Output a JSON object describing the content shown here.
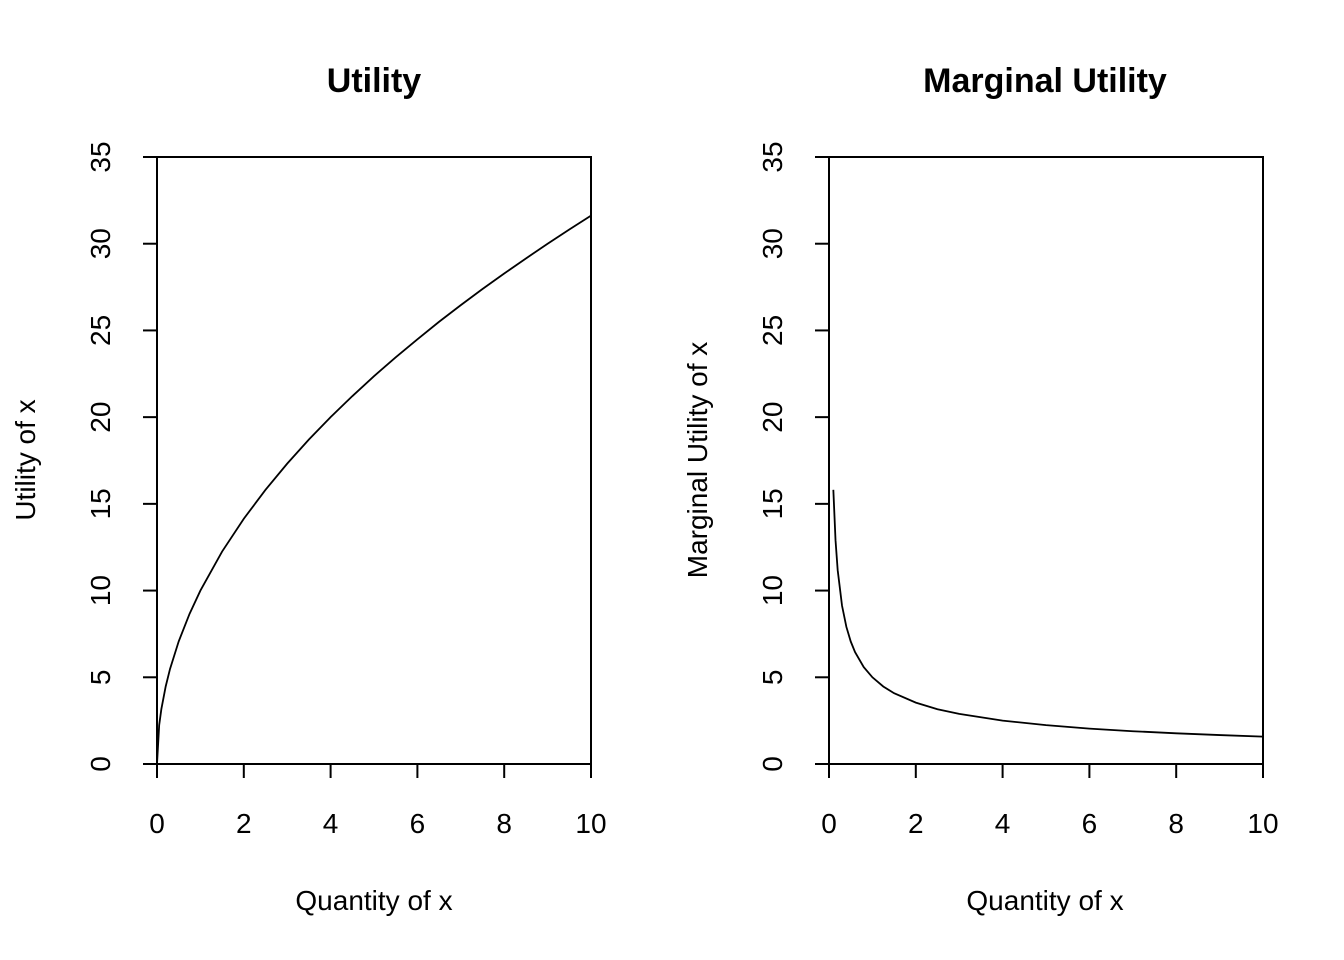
{
  "chart_data": [
    {
      "type": "line",
      "title": "Utility",
      "xlabel": "Quantity of x",
      "ylabel": "Utility of x",
      "xlim": [
        0,
        10
      ],
      "ylim": [
        0,
        35
      ],
      "xticks": [
        "0",
        "2",
        "4",
        "6",
        "8",
        "10"
      ],
      "yticks": [
        "0",
        "5",
        "10",
        "15",
        "20",
        "25",
        "30",
        "35"
      ],
      "grid": false,
      "series": [
        {
          "x": [
            0,
            0.05,
            0.1,
            0.2,
            0.3,
            0.5,
            0.75,
            1,
            1.5,
            2,
            2.5,
            3,
            3.5,
            4,
            4.5,
            5,
            5.5,
            6,
            6.5,
            7,
            7.5,
            8,
            8.5,
            9,
            9.5,
            10
          ],
          "y": [
            0,
            2.24,
            3.16,
            4.47,
            5.48,
            7.07,
            8.66,
            10.0,
            12.25,
            14.14,
            15.81,
            17.32,
            18.71,
            20.0,
            21.21,
            22.36,
            23.45,
            24.49,
            25.5,
            26.46,
            27.39,
            28.28,
            29.15,
            30.0,
            30.82,
            31.62
          ]
        }
      ]
    },
    {
      "type": "line",
      "title": "Marginal Utility",
      "xlabel": "Quantity of x",
      "ylabel": "Marginal Utility of x",
      "xlim": [
        0,
        10
      ],
      "ylim": [
        0,
        35
      ],
      "xticks": [
        "0",
        "2",
        "4",
        "6",
        "8",
        "10"
      ],
      "yticks": [
        "0",
        "5",
        "10",
        "15",
        "20",
        "25",
        "30",
        "35"
      ],
      "grid": false,
      "series": [
        {
          "x": [
            0.1,
            0.15,
            0.2,
            0.3,
            0.4,
            0.5,
            0.6,
            0.8,
            1,
            1.25,
            1.5,
            2,
            2.5,
            3,
            4,
            5,
            6,
            7,
            8,
            9,
            10
          ],
          "y": [
            15.81,
            12.91,
            11.18,
            9.13,
            7.91,
            7.07,
            6.45,
            5.59,
            5.0,
            4.47,
            4.08,
            3.54,
            3.16,
            2.89,
            2.5,
            2.24,
            2.04,
            1.89,
            1.77,
            1.67,
            1.58
          ]
        }
      ]
    }
  ]
}
